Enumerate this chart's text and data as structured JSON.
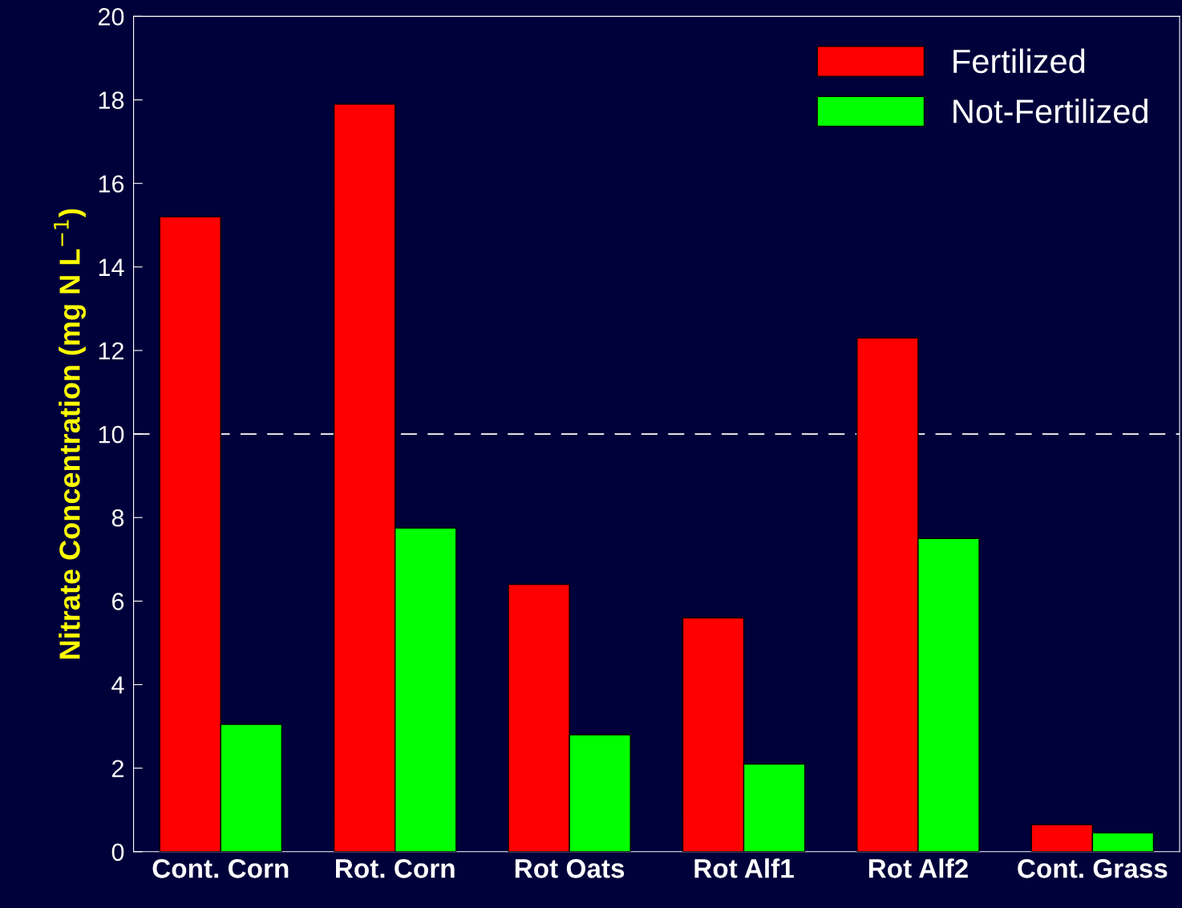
{
  "chart_data": {
    "type": "bar",
    "ylabel": "Nitrate Concentration (mg N L$^{−1}$)",
    "categories": [
      "Cont. Corn",
      "Rot. Corn",
      "Rot Oats",
      "Rot Alf1",
      "Rot Alf2",
      "Cont. Grass"
    ],
    "series": [
      {
        "name": "Fertilized",
        "color": "#ff0000",
        "values": [
          15.2,
          17.9,
          6.4,
          5.6,
          12.3,
          0.65
        ]
      },
      {
        "name": "Not-Fertilized",
        "color": "#00ff00",
        "values": [
          3.05,
          7.75,
          2.8,
          2.1,
          7.5,
          0.45
        ]
      }
    ],
    "ylim": [
      0,
      20
    ],
    "yticks": [
      0,
      2,
      4,
      6,
      8,
      10,
      12,
      14,
      16,
      18,
      20
    ],
    "ref_lines": [
      {
        "axis": "y",
        "value": 10,
        "color": "#ffffff",
        "line_style": "dashed"
      }
    ],
    "legend": "top right",
    "grid": false
  }
}
